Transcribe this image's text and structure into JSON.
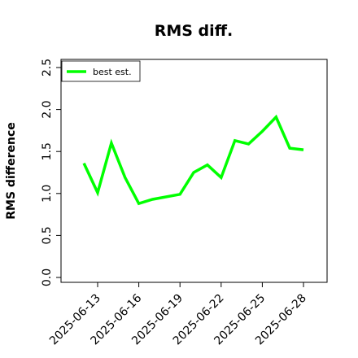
{
  "chart_data": {
    "type": "line",
    "title": "RMS diff.",
    "xlabel": "",
    "ylabel": "RMS difference",
    "ylim": [
      0.0,
      2.5
    ],
    "yticks": [
      "0.0",
      "0.5",
      "1.0",
      "1.5",
      "2.0",
      "2.5"
    ],
    "xticks": [
      "2025-06-13",
      "2025-06-16",
      "2025-06-19",
      "2025-06-22",
      "2025-06-25",
      "2025-06-28"
    ],
    "grid": false,
    "legend": "top-left",
    "series": [
      {
        "name": "best est.",
        "color": "#00ff00",
        "points": [
          {
            "x": "2025-06-12",
            "y": 1.36
          },
          {
            "x": "2025-06-13",
            "y": 1.01
          },
          {
            "x": "2025-06-14",
            "y": 1.6
          },
          {
            "x": "2025-06-15",
            "y": 1.19
          },
          {
            "x": "2025-06-16",
            "y": 0.88
          },
          {
            "x": "2025-06-17",
            "y": 0.93
          },
          {
            "x": "2025-06-19",
            "y": 0.99
          },
          {
            "x": "2025-06-20",
            "y": 1.25
          },
          {
            "x": "2025-06-21",
            "y": 1.34
          },
          {
            "x": "2025-06-22",
            "y": 1.19
          },
          {
            "x": "2025-06-23",
            "y": 1.63
          },
          {
            "x": "2025-06-24",
            "y": 1.59
          },
          {
            "x": "2025-06-25",
            "y": 1.74
          },
          {
            "x": "2025-06-26",
            "y": 1.91
          },
          {
            "x": "2025-06-27",
            "y": 1.54
          },
          {
            "x": "2025-06-28",
            "y": 1.52
          }
        ]
      }
    ]
  }
}
